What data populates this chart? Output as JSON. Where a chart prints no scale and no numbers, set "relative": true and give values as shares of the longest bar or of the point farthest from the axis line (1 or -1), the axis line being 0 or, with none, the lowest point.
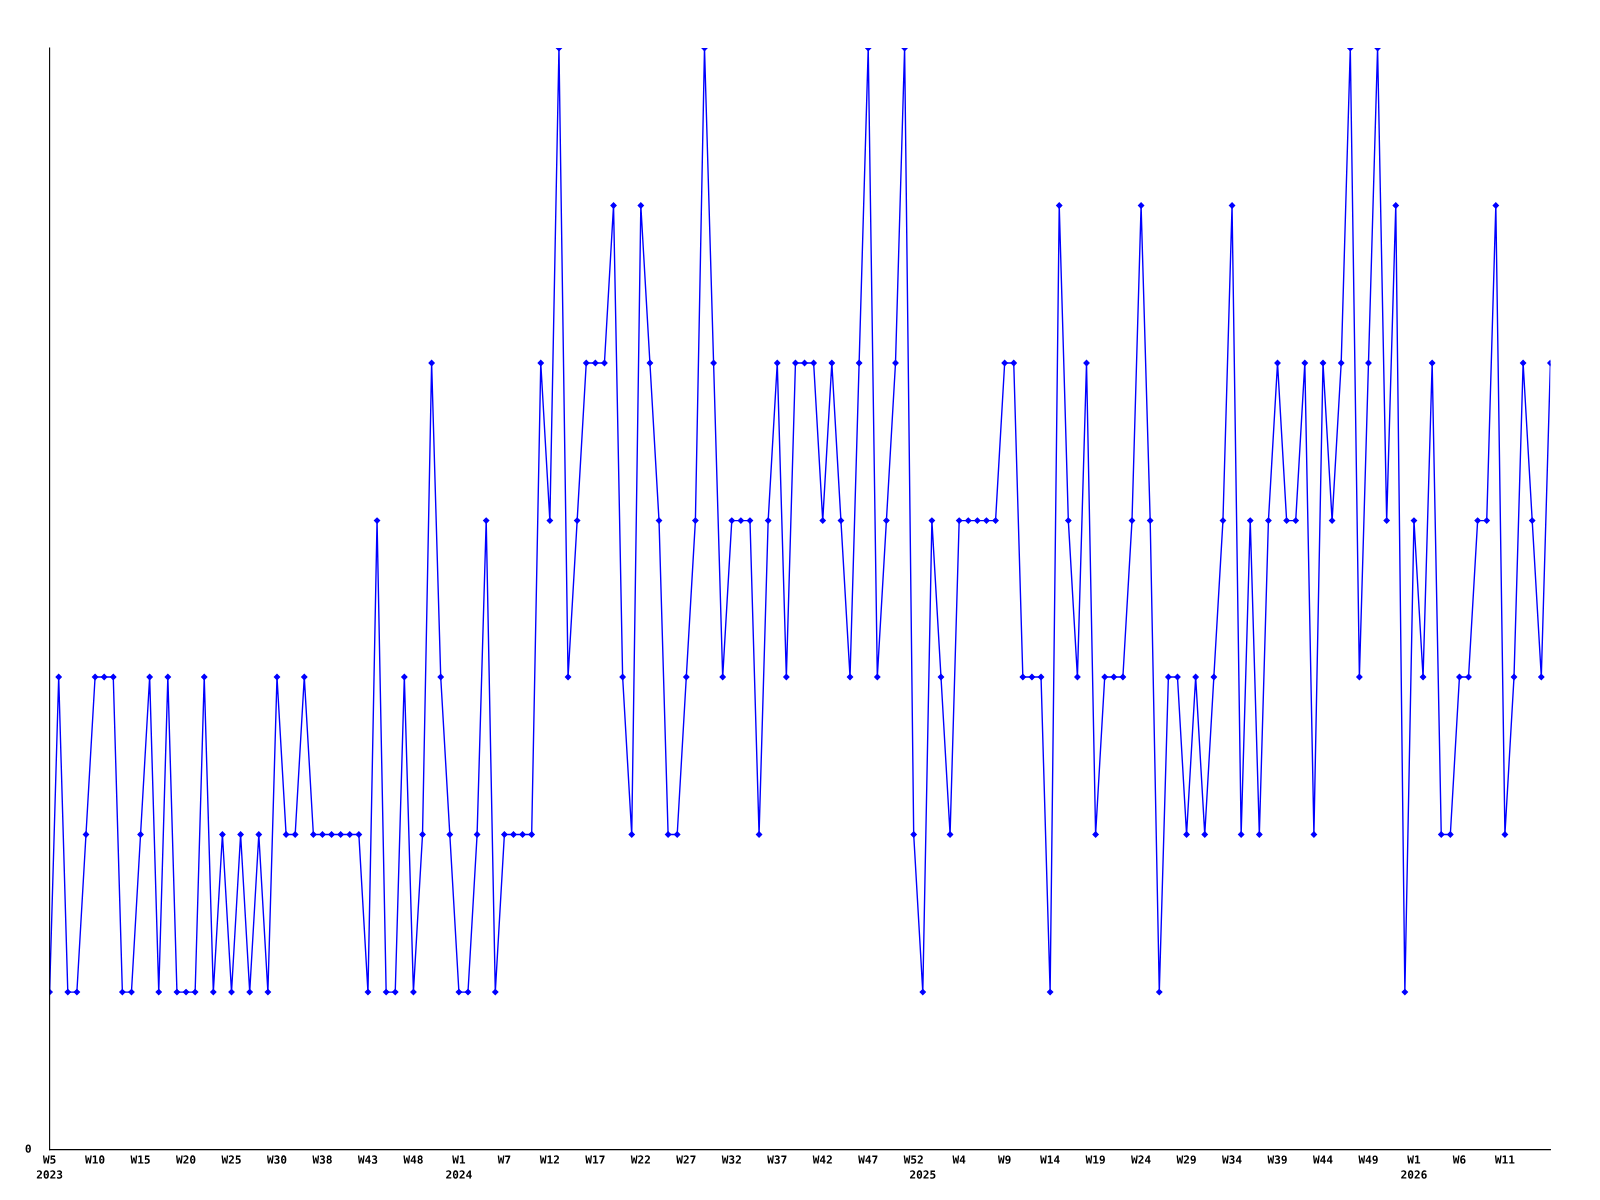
{
  "chart_data": {
    "type": "line",
    "relative": true,
    "marker": "diamond",
    "line_style": "solid",
    "grid": false,
    "legend": false,
    "annotations": [
      "0"
    ],
    "categories": [
      "W5\n2023",
      null,
      null,
      null,
      null,
      "W10",
      null,
      null,
      null,
      null,
      "W15",
      null,
      null,
      null,
      null,
      "W20",
      null,
      null,
      null,
      null,
      "W25",
      null,
      null,
      null,
      null,
      "W30",
      null,
      null,
      null,
      null,
      "W38",
      null,
      null,
      null,
      null,
      "W43",
      null,
      null,
      null,
      null,
      "W48",
      null,
      null,
      null,
      null,
      "W1\n2024",
      null,
      null,
      null,
      null,
      "W7",
      null,
      null,
      null,
      null,
      "W12",
      null,
      null,
      null,
      null,
      "W17",
      null,
      null,
      null,
      null,
      "W22",
      null,
      null,
      null,
      null,
      "W27",
      null,
      null,
      null,
      null,
      "W32",
      null,
      null,
      null,
      null,
      "W37",
      null,
      null,
      null,
      null,
      "W42",
      null,
      null,
      null,
      null,
      "W47",
      null,
      null,
      null,
      null,
      "W52",
      "\n2025",
      null,
      null,
      null,
      "W4",
      null,
      null,
      null,
      null,
      "W9",
      null,
      null,
      null,
      null,
      "W14",
      null,
      null,
      null,
      null,
      "W19",
      null,
      null,
      null,
      null,
      "W24",
      null,
      null,
      null,
      null,
      "W29",
      null,
      null,
      null,
      null,
      "W34",
      null,
      null,
      null,
      null,
      "W39",
      null,
      null,
      null,
      null,
      "W44",
      null,
      null,
      null,
      null,
      "W49",
      null,
      null,
      null,
      null,
      "W1\n2026",
      null,
      null,
      null,
      null,
      "W6",
      null,
      null,
      null,
      null,
      "W11",
      null,
      null,
      null,
      null,
      null
    ],
    "series": [
      {
        "color": "#0000ff",
        "values": [
          0.143,
          0.429,
          0.143,
          0.143,
          0.286,
          0.429,
          0.429,
          0.429,
          0.143,
          0.143,
          0.286,
          0.429,
          0.143,
          0.429,
          0.143,
          0.143,
          0.143,
          0.429,
          0.143,
          0.286,
          0.143,
          0.286,
          0.143,
          0.286,
          0.143,
          0.429,
          0.286,
          0.286,
          0.429,
          0.286,
          0.286,
          0.286,
          0.286,
          0.286,
          0.286,
          0.143,
          0.571,
          0.143,
          0.143,
          0.429,
          0.143,
          0.286,
          0.714,
          0.429,
          0.286,
          0.143,
          0.143,
          0.286,
          0.571,
          0.143,
          0.286,
          0.286,
          0.286,
          0.286,
          0.714,
          0.571,
          1,
          0.429,
          0.571,
          0.714,
          0.714,
          0.714,
          0.857,
          0.429,
          0.286,
          0.857,
          0.714,
          0.571,
          0.286,
          0.286,
          0.429,
          0.571,
          1,
          0.714,
          0.429,
          0.571,
          0.571,
          0.571,
          0.286,
          0.571,
          0.714,
          0.429,
          0.714,
          0.714,
          0.714,
          0.571,
          0.714,
          0.571,
          0.429,
          0.714,
          1,
          0.429,
          0.571,
          0.714,
          1,
          0.286,
          0.143,
          0.571,
          0.429,
          0.286,
          0.571,
          0.571,
          0.571,
          0.571,
          0.571,
          0.714,
          0.714,
          0.429,
          0.429,
          0.429,
          0.143,
          0.857,
          0.571,
          0.429,
          0.714,
          0.286,
          0.429,
          0.429,
          0.429,
          0.571,
          0.857,
          0.571,
          0.143,
          0.429,
          0.429,
          0.286,
          0.429,
          0.286,
          0.429,
          0.571,
          0.857,
          0.286,
          0.571,
          0.286,
          0.571,
          0.714,
          0.571,
          0.571,
          0.714,
          0.286,
          0.714,
          0.571,
          0.714,
          1,
          0.429,
          0.714,
          1,
          0.571,
          0.857,
          0.143,
          0.571,
          0.429,
          0.714,
          0.286,
          0.286,
          0.429,
          0.429,
          0.571,
          0.571,
          0.857,
          0.286,
          0.429,
          0.714,
          0.571,
          0.429,
          0.714
        ]
      }
    ]
  }
}
